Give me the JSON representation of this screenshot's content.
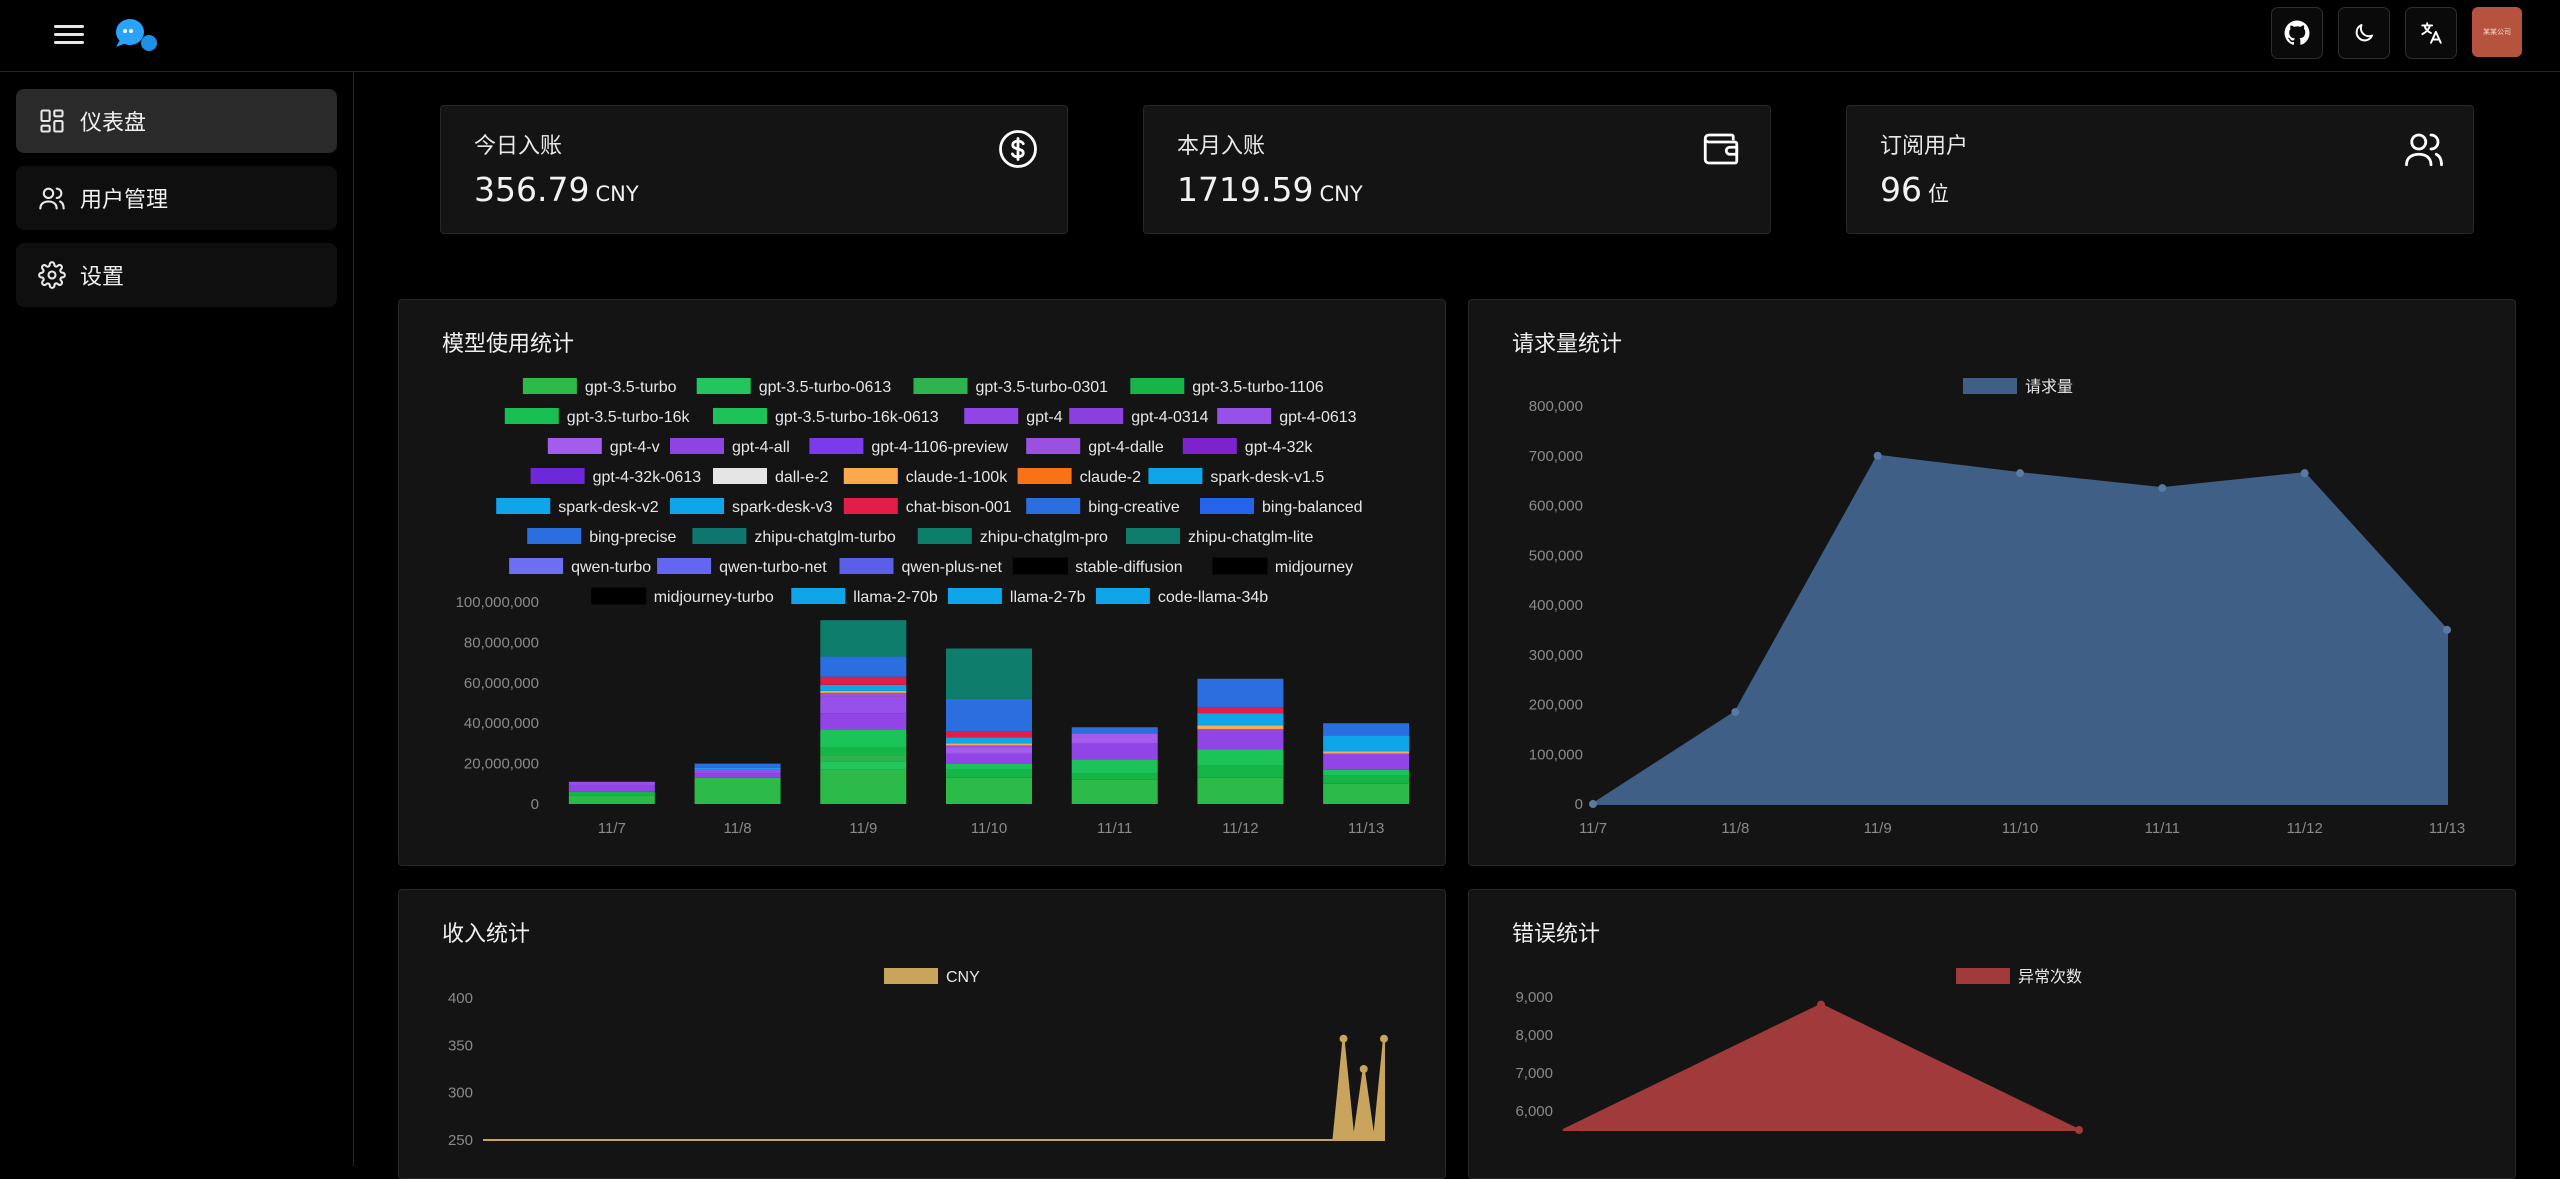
{
  "header": {
    "menu_icon": "hamburger-icon",
    "logo_icon": "chat-bubbles-logo",
    "actions": [
      "github-icon",
      "moon-icon",
      "translate-icon"
    ],
    "avatar_text": "某某公司"
  },
  "sidebar": {
    "items": [
      {
        "label": "仪表盘",
        "icon": "dashboard-icon",
        "active": true
      },
      {
        "label": "用户管理",
        "icon": "users-icon",
        "active": false
      },
      {
        "label": "设置",
        "icon": "gear-icon",
        "active": false
      }
    ]
  },
  "stats": [
    {
      "title": "今日入账",
      "value": "356.79",
      "unit": "CNY",
      "icon": "dollar-circle-icon"
    },
    {
      "title": "本月入账",
      "value": "1719.59",
      "unit": "CNY",
      "icon": "wallet-icon"
    },
    {
      "title": "订阅用户",
      "value": "96",
      "unit": "位",
      "icon": "users-icon"
    }
  ],
  "panels": {
    "model_usage": {
      "title": "模型使用统计"
    },
    "requests": {
      "title": "请求量统计"
    },
    "income": {
      "title": "收入统计"
    },
    "errors": {
      "title": "错误统计"
    }
  },
  "colors": {
    "accent": "#3b82f6",
    "request_area": "#3f5f86",
    "income_area": "#c9a45c",
    "error_area": "#a13a3a"
  },
  "chart_data": [
    {
      "id": "model_usage",
      "type": "bar",
      "stacked": true,
      "categories": [
        "11/7",
        "11/8",
        "11/9",
        "11/10",
        "11/11",
        "11/12",
        "11/13"
      ],
      "ylim": [
        0,
        100000000
      ],
      "yticks": [
        "0",
        "20,000,000",
        "40,000,000",
        "60,000,000",
        "80,000,000",
        "100,000,000"
      ],
      "legend_placement": "top",
      "series": [
        {
          "name": "gpt-3.5-turbo",
          "color": "#2cba48",
          "values": [
            4000000,
            13000000,
            17000000,
            13000000,
            12000000,
            13000000,
            10000000
          ]
        },
        {
          "name": "gpt-3.5-turbo-0613",
          "color": "#22c55e",
          "values": [
            0,
            0,
            4000000,
            0,
            0,
            0,
            0
          ]
        },
        {
          "name": "gpt-3.5-turbo-0301",
          "color": "#2fb34f",
          "values": [
            0,
            0,
            3000000,
            0,
            0,
            0,
            0
          ]
        },
        {
          "name": "gpt-3.5-turbo-1106",
          "color": "#16b548",
          "values": [
            2000000,
            0,
            4000000,
            4000000,
            3000000,
            6000000,
            4000000
          ]
        },
        {
          "name": "gpt-3.5-turbo-16k",
          "color": "#18bf52",
          "values": [
            0,
            0,
            0,
            0,
            0,
            0,
            0
          ]
        },
        {
          "name": "gpt-3.5-turbo-16k-0613",
          "color": "#1cc359",
          "values": [
            0,
            0,
            9000000,
            3000000,
            7000000,
            8000000,
            3000000
          ]
        },
        {
          "name": "gpt-4",
          "color": "#9245e6",
          "values": [
            3000000,
            2000000,
            8000000,
            5000000,
            8000000,
            10000000,
            8000000
          ]
        },
        {
          "name": "gpt-4-0314",
          "color": "#8b3fe0",
          "values": [
            0,
            0,
            0,
            0,
            0,
            0,
            0
          ]
        },
        {
          "name": "gpt-4-0613",
          "color": "#9850ea",
          "values": [
            2000000,
            2000000,
            8000000,
            0,
            0,
            0,
            0
          ]
        },
        {
          "name": "gpt-4-v",
          "color": "#a35ceb",
          "values": [
            0,
            0,
            0,
            3000000,
            5000000,
            0,
            0
          ]
        },
        {
          "name": "gpt-4-all",
          "color": "#8e44e3",
          "values": [
            0,
            0,
            0,
            0,
            0,
            0,
            0
          ]
        },
        {
          "name": "gpt-4-1106-preview",
          "color": "#7c3aed",
          "values": [
            0,
            0,
            0,
            0,
            0,
            0,
            0
          ]
        },
        {
          "name": "gpt-4-dalle",
          "color": "#9b51e0",
          "values": [
            0,
            0,
            2000000,
            1000000,
            0,
            0,
            0
          ]
        },
        {
          "name": "gpt-4-32k",
          "color": "#7e22ce",
          "values": [
            0,
            0,
            0,
            0,
            0,
            0,
            0
          ]
        },
        {
          "name": "gpt-4-32k-0613",
          "color": "#6d28d9",
          "values": [
            0,
            0,
            0,
            0,
            0,
            0,
            0
          ]
        },
        {
          "name": "dall-e-2",
          "color": "#e5e5e5",
          "values": [
            0,
            0,
            0,
            0,
            0,
            0,
            0
          ]
        },
        {
          "name": "claude-1-100k",
          "color": "#fba94a",
          "values": [
            0,
            0,
            1000000,
            1000000,
            0,
            2000000,
            1000000
          ]
        },
        {
          "name": "claude-2",
          "color": "#f97316",
          "values": [
            0,
            0,
            0,
            0,
            0,
            0,
            0
          ]
        },
        {
          "name": "spark-desk-v1.5",
          "color": "#0ea5e9",
          "values": [
            0,
            0,
            0,
            0,
            0,
            0,
            0
          ]
        },
        {
          "name": "spark-desk-v2",
          "color": "#0ea5e9",
          "values": [
            0,
            0,
            0,
            0,
            0,
            0,
            0
          ]
        },
        {
          "name": "spark-desk-v3",
          "color": "#0ea5e9",
          "values": [
            0,
            1000000,
            3000000,
            3000000,
            0,
            6000000,
            8000000
          ]
        },
        {
          "name": "chat-bison-001",
          "color": "#e11d48",
          "values": [
            0,
            0,
            4000000,
            3000000,
            0,
            3000000,
            0
          ]
        },
        {
          "name": "bing-creative",
          "color": "#2a6ee0",
          "values": [
            0,
            0,
            0,
            0,
            0,
            0,
            0
          ]
        },
        {
          "name": "bing-balanced",
          "color": "#2563eb",
          "values": [
            0,
            0,
            0,
            0,
            0,
            0,
            0
          ]
        },
        {
          "name": "bing-precise",
          "color": "#2a6ee0",
          "values": [
            0,
            2000000,
            10000000,
            16000000,
            3000000,
            14000000,
            6000000
          ]
        },
        {
          "name": "zhipu-chatglm-turbo",
          "color": "#0f766e",
          "values": [
            0,
            0,
            0,
            0,
            0,
            0,
            0
          ]
        },
        {
          "name": "zhipu-chatglm-pro",
          "color": "#0b7f6a",
          "values": [
            0,
            0,
            0,
            0,
            0,
            0,
            0
          ]
        },
        {
          "name": "zhipu-chatglm-lite",
          "color": "#0e7d6c",
          "values": [
            0,
            0,
            18000000,
            25000000,
            0,
            0,
            0
          ]
        },
        {
          "name": "qwen-turbo",
          "color": "#6b6ff0",
          "values": [
            0,
            0,
            0,
            0,
            0,
            0,
            0
          ]
        },
        {
          "name": "qwen-turbo-net",
          "color": "#6366f1",
          "values": [
            0,
            0,
            0,
            0,
            0,
            0,
            0
          ]
        },
        {
          "name": "qwen-plus-net",
          "color": "#5b5fe8",
          "values": [
            0,
            0,
            0,
            0,
            0,
            0,
            0
          ]
        },
        {
          "name": "stable-diffusion",
          "color": "#000000",
          "values": [
            0,
            0,
            0,
            0,
            0,
            0,
            0
          ]
        },
        {
          "name": "midjourney",
          "color": "#000000",
          "values": [
            0,
            0,
            0,
            0,
            0,
            0,
            0
          ]
        },
        {
          "name": "midjourney-turbo",
          "color": "#000000",
          "values": [
            0,
            0,
            0,
            0,
            0,
            0,
            0
          ]
        },
        {
          "name": "llama-2-70b",
          "color": "#0ea5e9",
          "values": [
            0,
            0,
            0,
            0,
            0,
            0,
            0
          ]
        },
        {
          "name": "llama-2-7b",
          "color": "#0ea5e9",
          "values": [
            0,
            0,
            0,
            0,
            0,
            0,
            0
          ]
        },
        {
          "name": "code-llama-34b",
          "color": "#0ea5e9",
          "values": [
            0,
            0,
            0,
            0,
            0,
            0,
            0
          ]
        }
      ]
    },
    {
      "id": "requests",
      "type": "area",
      "x": [
        "11/7",
        "11/8",
        "11/9",
        "11/10",
        "11/11",
        "11/12",
        "11/13"
      ],
      "ylim": [
        0,
        800000
      ],
      "yticks": [
        "0",
        "100,000",
        "200,000",
        "300,000",
        "400,000",
        "500,000",
        "600,000",
        "700,000",
        "800,000"
      ],
      "legend_placement": "top",
      "series": [
        {
          "name": "请求量",
          "color": "#3f5f86",
          "values": [
            0,
            185000,
            700000,
            665000,
            635000,
            665000,
            350000
          ]
        }
      ]
    },
    {
      "id": "income",
      "type": "area",
      "ylim_visible": [
        250,
        400
      ],
      "yticks": [
        "250",
        "300",
        "350",
        "400"
      ],
      "legend_placement": "top",
      "series": [
        {
          "name": "CNY",
          "color": "#c9a45c",
          "values": [
            0,
            0,
            0,
            0,
            0,
            0,
            0,
            0,
            0,
            0,
            0,
            0,
            0,
            0,
            0,
            0,
            0,
            0,
            0,
            0,
            0,
            0,
            0,
            0,
            0,
            0,
            0,
            0,
            0,
            0,
            0,
            0,
            0,
            0,
            0,
            0,
            0,
            0,
            0,
            0,
            0,
            0,
            0,
            0,
            0,
            0,
            0,
            0,
            0,
            0,
            0,
            0,
            0,
            0,
            0,
            0,
            0,
            0,
            0,
            0,
            0,
            0,
            0,
            0,
            0,
            0,
            0,
            0,
            0,
            0,
            0,
            0,
            0,
            0,
            0,
            0,
            0,
            0,
            0,
            0,
            0,
            0,
            0,
            0,
            0,
            357,
            0,
            325,
            0,
            357
          ]
        }
      ]
    },
    {
      "id": "errors",
      "type": "area",
      "ylim_visible": [
        5500,
        9000
      ],
      "yticks": [
        "6,000",
        "7,000",
        "8,000",
        "9,000"
      ],
      "legend_placement": "top",
      "series": [
        {
          "name": "异常次数",
          "color": "#a13a3a",
          "values": [
            0,
            8800,
            5000
          ]
        }
      ]
    }
  ]
}
